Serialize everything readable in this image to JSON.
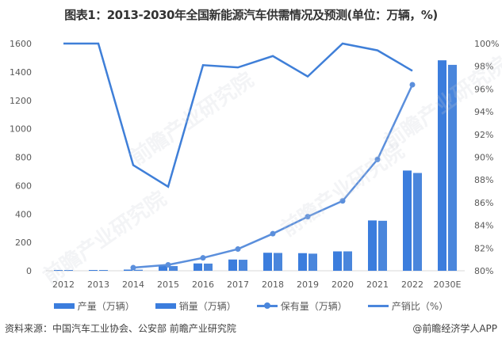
{
  "title": "图表1：2013-2030年全国新能源汽车供需情况及预测(单位：万辆，%)",
  "watermark": "前瞻产业研究院",
  "colors": {
    "production": "#3b7ddd",
    "sales": "#4a86dc",
    "ownership": "#5b8fdc",
    "ratio": "#3f7fd8",
    "axis_text": "#595959"
  },
  "legend": {
    "production": "产量（万辆）",
    "sales": "销量（万辆）",
    "ownership": "保有量（万辆）",
    "ratio": "产销比（%）"
  },
  "source": "资料来源：中国汽车工业协会、公安部 前瞻产业研究院",
  "credit": "@前瞻经济学人APP",
  "chart_data": {
    "type": "bar",
    "title": "图表1：2013-2030年全国新能源汽车供需情况及预测(单位：万辆，%)",
    "categories": [
      "2012",
      "2013",
      "2014",
      "2015",
      "2016",
      "2017",
      "2018",
      "2019",
      "2020",
      "2021",
      "2022",
      "2030E"
    ],
    "series": [
      {
        "name": "产量（万辆）",
        "type": "bar",
        "axis": "left",
        "values": [
          1.3,
          1.8,
          8.4,
          34.0,
          51.7,
          79.4,
          127.0,
          124.2,
          136.6,
          354.5,
          705.8,
          1482
        ]
      },
      {
        "name": "销量（万辆）",
        "type": "bar",
        "axis": "left",
        "values": [
          1.3,
          1.8,
          7.5,
          33.1,
          50.7,
          77.7,
          125.6,
          120.6,
          136.7,
          352.1,
          688.7,
          1450
        ]
      },
      {
        "name": "保有量（万辆）",
        "type": "line-marker",
        "axis": "left",
        "values": [
          null,
          null,
          22,
          42,
          91,
          153,
          261,
          381,
          492,
          784,
          1310,
          null
        ]
      },
      {
        "name": "产销比（%）",
        "type": "line",
        "axis": "right",
        "values": [
          100,
          100,
          89.3,
          87.4,
          98.1,
          97.9,
          98.9,
          97.1,
          100,
          99.4,
          97.6,
          null
        ]
      }
    ],
    "left_axis": {
      "ylim": [
        0,
        1600
      ],
      "ticks": [
        "0",
        "200",
        "400",
        "600",
        "800",
        "1000",
        "1200",
        "1400",
        "1600"
      ]
    },
    "right_axis": {
      "ylim": [
        80,
        100
      ],
      "ticks": [
        "80%",
        "82%",
        "84%",
        "86%",
        "88%",
        "90%",
        "92%",
        "94%",
        "96%",
        "98%",
        "100%"
      ]
    },
    "grid": false,
    "legend_position": "bottom"
  }
}
